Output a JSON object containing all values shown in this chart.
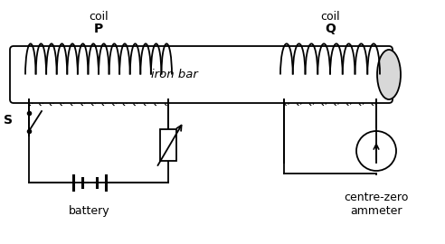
{
  "bg_color": "#ffffff",
  "line_color": "#000000",
  "text_color": "#000000",
  "coil_P_label": "coil",
  "coil_P_bold": "P",
  "coil_Q_label": "coil",
  "coil_Q_bold": "Q",
  "iron_bar_label": "iron bar",
  "battery_label": "battery",
  "ammeter_label": "centre-zero\nammeter",
  "switch_label": "S",
  "fig_width": 4.92,
  "fig_height": 2.7,
  "dpi": 100
}
